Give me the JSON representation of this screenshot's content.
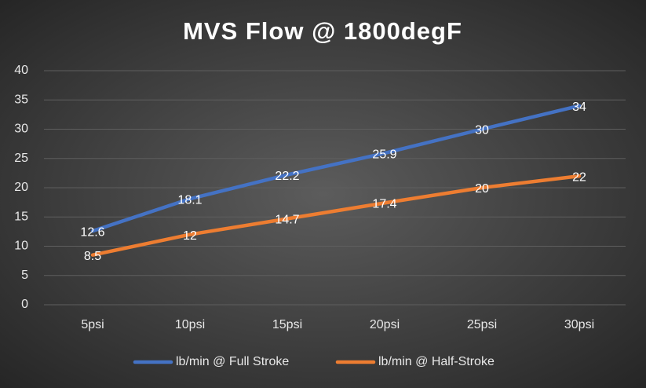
{
  "chart_data": {
    "type": "line",
    "title": "MVS Flow @ 1800degF",
    "categories": [
      "5psi",
      "10psi",
      "15psi",
      "20psi",
      "25psi",
      "30psi"
    ],
    "series": [
      {
        "name": "lb/min @ Full Stroke",
        "color": "#4472c4",
        "values": [
          12.6,
          18.1,
          22.2,
          25.9,
          30,
          34
        ]
      },
      {
        "name": "lb/min @ Half-Stroke",
        "color": "#ed7d31",
        "values": [
          8.5,
          12,
          14.7,
          17.4,
          20,
          22
        ]
      }
    ],
    "ylim": [
      0,
      40
    ],
    "yticks": [
      0,
      5,
      10,
      15,
      20,
      25,
      30,
      35,
      40
    ],
    "grid": true,
    "legend": "bottom"
  }
}
